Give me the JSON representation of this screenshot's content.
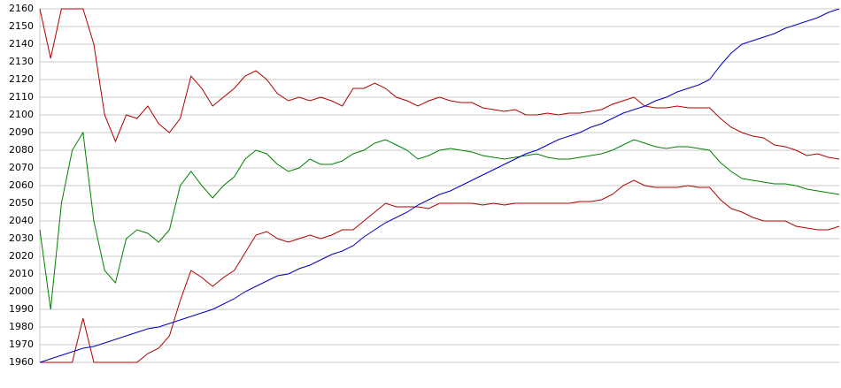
{
  "chart_data": {
    "type": "line",
    "ylim": [
      1960,
      2160
    ],
    "yticks": [
      1960,
      1970,
      1980,
      1990,
      2000,
      2010,
      2020,
      2030,
      2040,
      2050,
      2060,
      2070,
      2080,
      2090,
      2100,
      2110,
      2120,
      2130,
      2140,
      2150,
      2160
    ],
    "grid": true,
    "series": [
      {
        "color": "#b00000",
        "values": [
          2160,
          2132,
          2160,
          2160,
          2160,
          2140,
          2100,
          2085,
          2100,
          2098,
          2105,
          2095,
          2090,
          2098,
          2122,
          2115,
          2105,
          2110,
          2115,
          2122,
          2125,
          2120,
          2112,
          2108,
          2110,
          2108,
          2110,
          2108,
          2105,
          2115,
          2115,
          2118,
          2115,
          2110,
          2108,
          2105,
          2108,
          2110,
          2108,
          2107,
          2107,
          2104,
          2103,
          2102,
          2103,
          2100,
          2100,
          2101,
          2100,
          2101,
          2101,
          2102,
          2103,
          2106,
          2108,
          2110,
          2105,
          2104,
          2104,
          2105,
          2104,
          2104,
          2104,
          2098,
          2093,
          2090,
          2088,
          2087,
          2083,
          2082,
          2080,
          2077,
          2078,
          2076,
          2075
        ]
      },
      {
        "color": "#008000",
        "values": [
          2035,
          1990,
          2050,
          2080,
          2090,
          2040,
          2012,
          2005,
          2030,
          2035,
          2033,
          2028,
          2035,
          2060,
          2068,
          2060,
          2053,
          2060,
          2065,
          2075,
          2080,
          2078,
          2072,
          2068,
          2070,
          2075,
          2072,
          2072,
          2074,
          2078,
          2080,
          2084,
          2086,
          2083,
          2080,
          2075,
          2077,
          2080,
          2081,
          2080,
          2079,
          2077,
          2076,
          2075,
          2076,
          2077,
          2078,
          2076,
          2075,
          2075,
          2076,
          2077,
          2078,
          2080,
          2083,
          2086,
          2084,
          2082,
          2081,
          2082,
          2082,
          2081,
          2080,
          2073,
          2068,
          2064,
          2063,
          2062,
          2061,
          2061,
          2060,
          2058,
          2057,
          2056,
          2055
        ]
      },
      {
        "color": "#b00000",
        "values": [
          1960,
          1960,
          1960,
          1960,
          1985,
          1960,
          1960,
          1960,
          1960,
          1960,
          1965,
          1968,
          1975,
          1995,
          2012,
          2008,
          2003,
          2008,
          2012,
          2022,
          2032,
          2034,
          2030,
          2028,
          2030,
          2032,
          2030,
          2032,
          2035,
          2035,
          2040,
          2045,
          2050,
          2048,
          2048,
          2048,
          2047,
          2050,
          2050,
          2050,
          2050,
          2049,
          2050,
          2049,
          2050,
          2050,
          2050,
          2050,
          2050,
          2050,
          2051,
          2051,
          2052,
          2055,
          2060,
          2063,
          2060,
          2059,
          2059,
          2059,
          2060,
          2059,
          2059,
          2052,
          2047,
          2045,
          2042,
          2040,
          2040,
          2040,
          2037,
          2036,
          2035,
          2035,
          2037
        ]
      },
      {
        "color": "#0000c0",
        "values": [
          1960,
          1962,
          1964,
          1966,
          1968,
          1969,
          1971,
          1973,
          1975,
          1977,
          1979,
          1980,
          1982,
          1984,
          1986,
          1988,
          1990,
          1993,
          1996,
          2000,
          2003,
          2006,
          2009,
          2010,
          2013,
          2015,
          2018,
          2021,
          2023,
          2026,
          2031,
          2035,
          2039,
          2042,
          2045,
          2049,
          2052,
          2055,
          2057,
          2060,
          2063,
          2066,
          2069,
          2072,
          2075,
          2078,
          2080,
          2083,
          2086,
          2088,
          2090,
          2093,
          2095,
          2098,
          2101,
          2103,
          2105,
          2108,
          2110,
          2113,
          2115,
          2117,
          2120,
          2128,
          2135,
          2140,
          2142,
          2144,
          2146,
          2149,
          2151,
          2153,
          2155,
          2158,
          2160
        ]
      }
    ]
  }
}
